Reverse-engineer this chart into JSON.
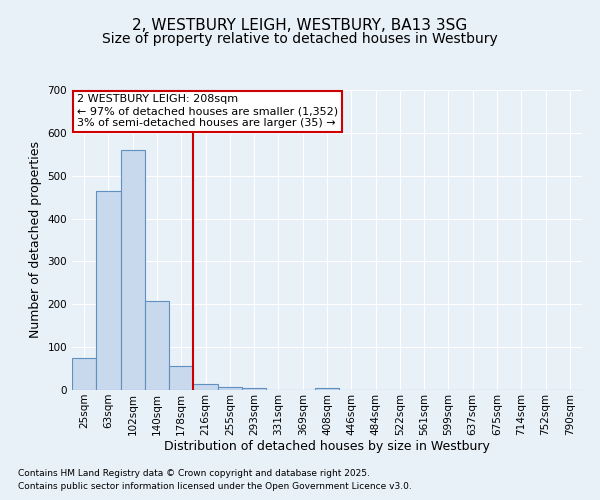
{
  "title1": "2, WESTBURY LEIGH, WESTBURY, BA13 3SG",
  "title2": "Size of property relative to detached houses in Westbury",
  "xlabel": "Distribution of detached houses by size in Westbury",
  "ylabel": "Number of detached properties",
  "categories": [
    "25sqm",
    "63sqm",
    "102sqm",
    "140sqm",
    "178sqm",
    "216sqm",
    "255sqm",
    "293sqm",
    "331sqm",
    "369sqm",
    "408sqm",
    "446sqm",
    "484sqm",
    "522sqm",
    "561sqm",
    "599sqm",
    "637sqm",
    "675sqm",
    "714sqm",
    "752sqm",
    "790sqm"
  ],
  "values": [
    75,
    465,
    560,
    207,
    57,
    15,
    8,
    5,
    0,
    0,
    5,
    0,
    0,
    0,
    0,
    0,
    0,
    0,
    0,
    0,
    0
  ],
  "bar_color": "#c8d9ee",
  "bar_edge_color": "#6090c0",
  "ylim": [
    0,
    700
  ],
  "yticks": [
    0,
    100,
    200,
    300,
    400,
    500,
    600,
    700
  ],
  "marker_color": "#cc0000",
  "annotation_line1": "2 WESTBURY LEIGH: 208sqm",
  "annotation_line2": "← 97% of detached houses are smaller (1,352)",
  "annotation_line3": "3% of semi-detached houses are larger (35) →",
  "footer1": "Contains HM Land Registry data © Crown copyright and database right 2025.",
  "footer2": "Contains public sector information licensed under the Open Government Licence v3.0.",
  "bg_color": "#e8f0f8",
  "grid_color": "#ffffff",
  "title1_fontsize": 11,
  "title2_fontsize": 10,
  "axis_label_fontsize": 9,
  "tick_fontsize": 7.5,
  "annotation_fontsize": 8,
  "footer_fontsize": 6.5
}
